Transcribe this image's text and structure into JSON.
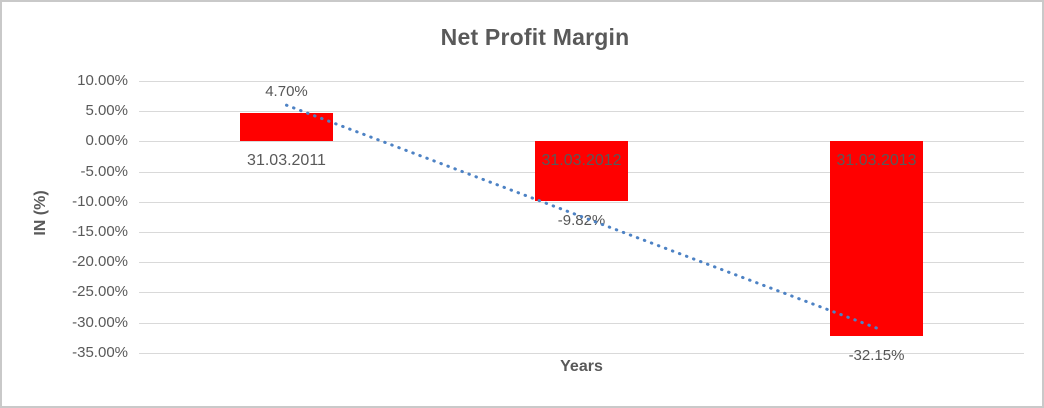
{
  "chart_data": {
    "type": "bar",
    "title": "Net Profit Margin",
    "xlabel": "Years",
    "ylabel": "IN (%)",
    "categories": [
      "31.03.2011",
      "31.03.2012",
      "31.03.2013"
    ],
    "values": [
      4.7,
      -9.82,
      -32.15
    ],
    "value_labels": [
      "4.70%",
      "-9.82%",
      "-32.15%"
    ],
    "ylim": [
      -35,
      10
    ],
    "yticks": [
      10,
      5,
      0,
      -5,
      -10,
      -15,
      -20,
      -25,
      -30,
      -35
    ],
    "ytick_labels": [
      "10.00%",
      "5.00%",
      "0.00%",
      "-5.00%",
      "-10.00%",
      "-15.00%",
      "-20.00%",
      "-25.00%",
      "-30.00%",
      "-35.00%"
    ],
    "grid": true,
    "legend": "none",
    "bar_color": "#ff0000",
    "trendline": {
      "type": "linear",
      "style": "dotted",
      "color": "#4d82c4",
      "start_pct": 6.0,
      "end_pct": -30.9
    },
    "colors": {
      "text": "#595959",
      "gridline": "#d9d9d9",
      "background": "#ffffff",
      "border": "#c9c9c9"
    }
  }
}
